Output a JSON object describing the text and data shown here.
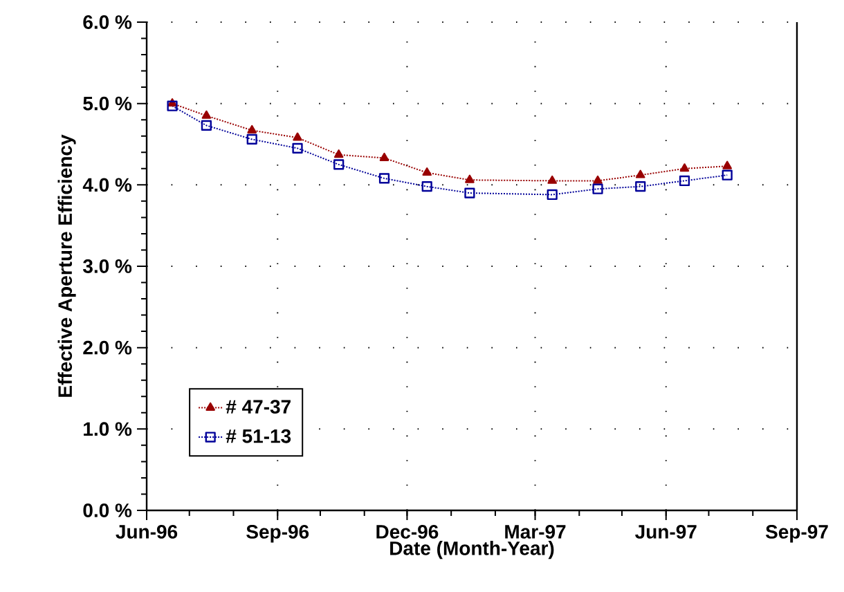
{
  "chart_data": {
    "type": "line",
    "xlabel": "Date (Month-Year)",
    "ylabel": "Effective Aperture Efficiency",
    "x": [
      "1996-06-19",
      "1996-07-13",
      "1996-08-14",
      "1996-09-15",
      "1996-10-14",
      "1996-11-15",
      "1996-12-15",
      "1997-01-14",
      "1997-03-13",
      "1997-04-14",
      "1997-05-14",
      "1997-06-14",
      "1997-07-14"
    ],
    "series": [
      {
        "name": "# 47-37",
        "color": "#990000",
        "marker": "triangle",
        "values": [
          5.0,
          4.85,
          4.67,
          4.58,
          4.37,
          4.33,
          4.15,
          4.06,
          4.05,
          4.05,
          4.12,
          4.2,
          4.23
        ]
      },
      {
        "name": "# 51-13",
        "color": "#000099",
        "marker": "square",
        "values": [
          4.97,
          4.73,
          4.56,
          4.45,
          4.25,
          4.08,
          3.98,
          3.9,
          3.88,
          3.95,
          3.98,
          4.05,
          4.12
        ]
      }
    ],
    "line_style": "dotted",
    "xlim": [
      "1996-06",
      "1997-09"
    ],
    "xticks": [
      {
        "value": "1996-06",
        "label": "Jun-96"
      },
      {
        "value": "1996-09",
        "label": "Sep-96"
      },
      {
        "value": "1996-12",
        "label": "Dec-96"
      },
      {
        "value": "1997-03",
        "label": "Mar-97"
      },
      {
        "value": "1997-06",
        "label": "Jun-97"
      },
      {
        "value": "1997-09",
        "label": "Sep-97"
      }
    ],
    "ylim": [
      0,
      6
    ],
    "yticks": [
      {
        "value": 0,
        "label": "0.0 %"
      },
      {
        "value": 1,
        "label": "1.0 %"
      },
      {
        "value": 2,
        "label": "2.0 %"
      },
      {
        "value": 3,
        "label": "3.0 %"
      },
      {
        "value": 4,
        "label": "4.0 %"
      },
      {
        "value": 5,
        "label": "5.0 %"
      },
      {
        "value": 6,
        "label": "6.0 %"
      }
    ],
    "grid": true,
    "legend": "bottom left"
  }
}
